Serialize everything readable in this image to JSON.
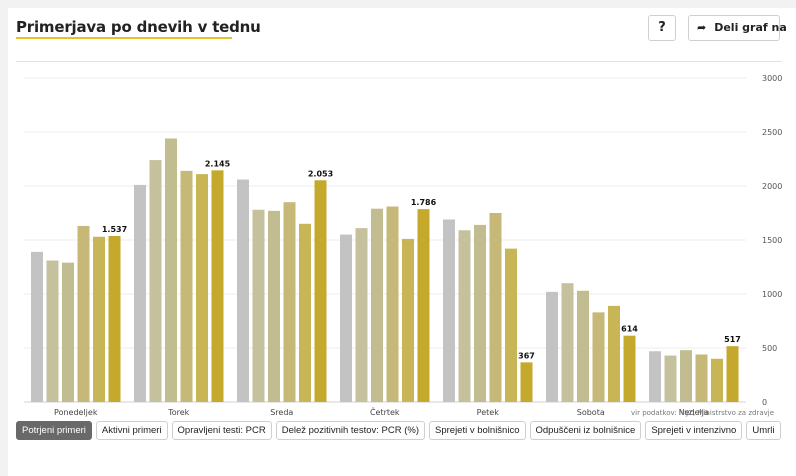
{
  "header": {
    "title": "Primerjava po dnevih v tednu",
    "help_label": "?",
    "share_label": "Deli graf na",
    "share_icon": "share-arrow-icon"
  },
  "source": "vir podatkov: NIJZ, Ministrstvo za zdravje",
  "tabs": [
    {
      "label": "Potrjeni primeri",
      "active": true
    },
    {
      "label": "Aktivni primeri",
      "active": false
    },
    {
      "label": "Opravljeni testi: PCR",
      "active": false
    },
    {
      "label": "Delež pozitivnih testov: PCR (%)",
      "active": false
    },
    {
      "label": "Sprejeti v bolnišnico",
      "active": false
    },
    {
      "label": "Odpuščeni iz bolnišnice",
      "active": false
    },
    {
      "label": "Sprejeti v intenzivno",
      "active": false
    },
    {
      "label": "Umrli",
      "active": false
    }
  ],
  "colors": {
    "series": [
      "#c3c3c3",
      "#c5c19c",
      "#c2bd90",
      "#c6b876",
      "#c8b555",
      "#c4a92c"
    ]
  },
  "chart_data": {
    "type": "bar",
    "categories": [
      "Ponedeljek",
      "Torek",
      "Sreda",
      "Četrtek",
      "Petek",
      "Sobota",
      "Nedelja"
    ],
    "series": [
      {
        "values": [
          1390,
          2010,
          2060,
          1550,
          1690,
          1020,
          470
        ]
      },
      {
        "values": [
          1310,
          2240,
          1780,
          1610,
          1590,
          1100,
          430
        ]
      },
      {
        "values": [
          1290,
          2440,
          1770,
          1790,
          1640,
          1030,
          480
        ]
      },
      {
        "values": [
          1630,
          2140,
          1850,
          1810,
          1750,
          830,
          440
        ]
      },
      {
        "values": [
          1530,
          2110,
          1650,
          1510,
          1420,
          890,
          400
        ]
      },
      {
        "values": [
          1537,
          2145,
          2053,
          1786,
          367,
          614,
          517
        ]
      }
    ],
    "data_labels": [
      "1.537",
      "2.145",
      "2.053",
      "1.786",
      "367",
      "614",
      "517"
    ],
    "ylim": [
      0,
      3000
    ],
    "yticks": [
      "0",
      "500",
      "1000",
      "1500",
      "2000",
      "2500",
      "3000"
    ],
    "grid": true,
    "legend": "none"
  }
}
